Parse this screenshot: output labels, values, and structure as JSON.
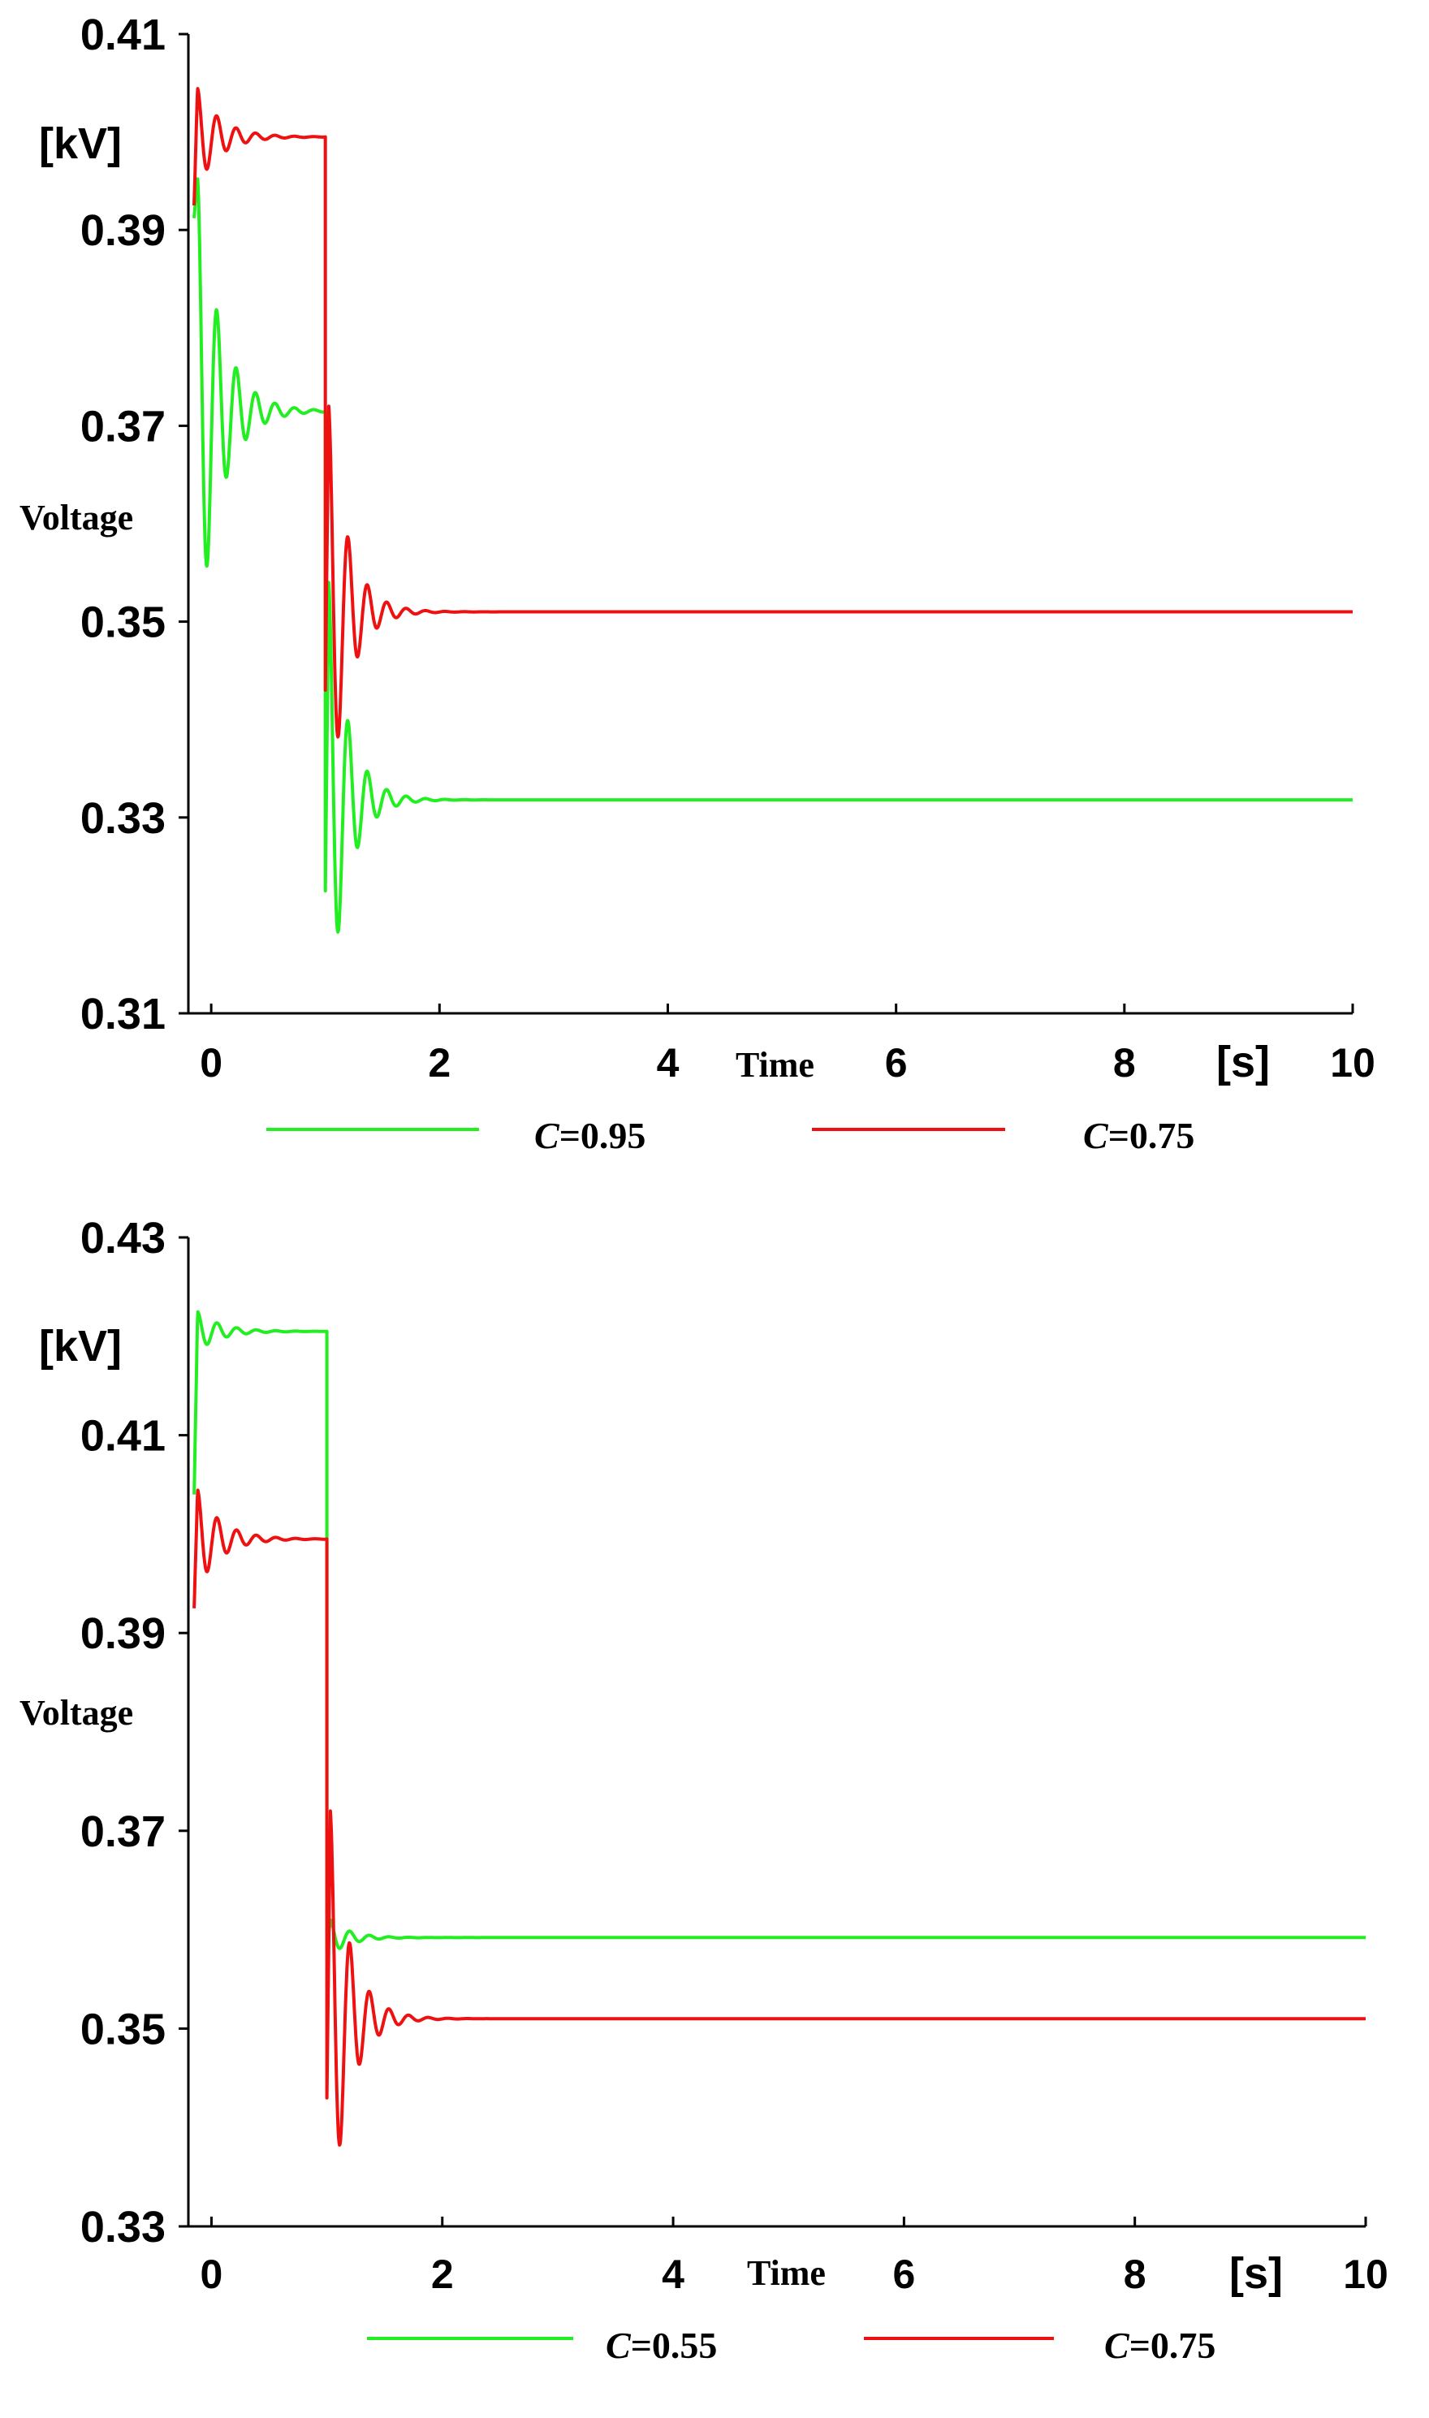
{
  "chart_data": [
    {
      "type": "line",
      "ylabel": "Voltage",
      "yunit": "[kV]",
      "xlabel": "Time",
      "xunit": "[s]",
      "xlim": [
        -0.2,
        10
      ],
      "ylim": [
        0.31,
        0.41
      ],
      "yticks": [
        "0.41",
        "0.39",
        "0.37",
        "0.35",
        "0.33",
        "0.31"
      ],
      "xticks": [
        "0",
        "2",
        "4",
        "6",
        "8",
        "10"
      ],
      "grid": false,
      "legend_position": "bottom",
      "series": [
        {
          "name_prefix": "C",
          "name_value": "=0.95",
          "color": "#22ee22",
          "initial_value": 0.3912,
          "pre_overshoot": 0.3955,
          "pre_steady": 0.3715,
          "pre_osc_amp": 0.0055,
          "step_time": 1.0,
          "dip_value": 0.3225,
          "post_peak": 0.354,
          "post_steady": 0.3318,
          "post_osc_amp": 0.003,
          "x_end": 10.0
        },
        {
          "name_prefix": "C",
          "name_value": "=0.75",
          "color": "#ee1111",
          "initial_value": 0.3925,
          "pre_overshoot": 0.4045,
          "pre_steady": 0.3995,
          "pre_osc_amp": 0.0045,
          "step_time": 1.0,
          "dip_value": 0.343,
          "post_peak": 0.372,
          "post_steady": 0.351,
          "post_osc_amp": 0.003,
          "x_end": 10.0
        }
      ]
    },
    {
      "type": "line",
      "ylabel": "Voltage",
      "yunit": "[kV]",
      "xlabel": "Time",
      "xunit": "[s]",
      "xlim": [
        -0.2,
        10
      ],
      "ylim": [
        0.33,
        0.43
      ],
      "yticks": [
        "0.43",
        "0.41",
        "0.39",
        "0.37",
        "0.35",
        "0.33"
      ],
      "xticks": [
        "0",
        "2",
        "4",
        "6",
        "8",
        "10"
      ],
      "grid": false,
      "legend_position": "bottom",
      "series": [
        {
          "name_prefix": "C",
          "name_value": "=0.55",
          "color": "#22ee22",
          "initial_value": 0.404,
          "pre_overshoot": 0.4225,
          "pre_steady": 0.4205,
          "pre_osc_amp": 0.0035,
          "step_time": 1.0,
          "dip_value": 0.358,
          "post_peak": 0.361,
          "post_steady": 0.3592,
          "post_osc_amp": 0.0012,
          "x_end": 10.0
        },
        {
          "name_prefix": "C",
          "name_value": "=0.75",
          "color": "#ee1111",
          "initial_value": 0.3925,
          "pre_overshoot": 0.4045,
          "pre_steady": 0.3995,
          "pre_osc_amp": 0.0045,
          "step_time": 1.0,
          "dip_value": 0.343,
          "post_peak": 0.372,
          "post_steady": 0.351,
          "post_osc_amp": 0.003,
          "x_end": 10.0
        }
      ]
    }
  ]
}
